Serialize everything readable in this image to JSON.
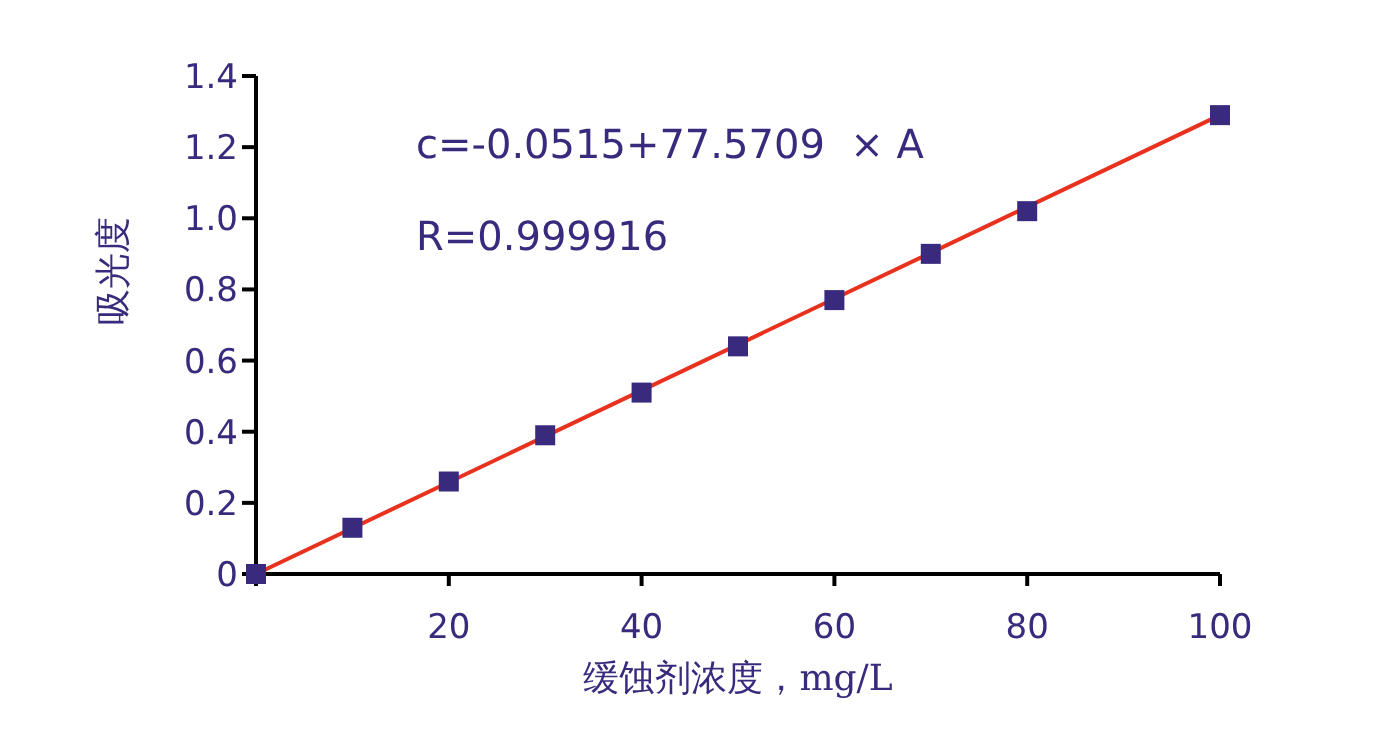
{
  "chart_data": {
    "type": "scatter",
    "xlabel": "缓蚀剂浓度，mg/L",
    "ylabel": "吸光度",
    "annotations": [
      "c=-0.0515+77.5709  × A",
      "R=0.999916"
    ],
    "x": [
      0,
      10,
      20,
      30,
      40,
      50,
      60,
      70,
      80,
      100
    ],
    "series": [
      {
        "color": "#3a2a7e",
        "marker": "square",
        "values": [
          0.0,
          0.13,
          0.26,
          0.39,
          0.51,
          0.64,
          0.77,
          0.9,
          1.02,
          1.29
        ]
      },
      {
        "type": "line",
        "color": "#e8321e",
        "marker": "none",
        "x": [
          0,
          100
        ],
        "values": [
          0.0,
          1.29
        ]
      }
    ],
    "xlim": [
      0,
      100
    ],
    "xticks": [
      {
        "value": 0,
        "label": null
      },
      20,
      40,
      60,
      80,
      100
    ],
    "ylim": [
      0,
      1.4
    ],
    "yticks": [
      0,
      0.2,
      0.4,
      0.6,
      0.8,
      {
        "value": 1,
        "label": "1.0"
      },
      1.2,
      1.4
    ],
    "grid": false,
    "legend": false
  }
}
